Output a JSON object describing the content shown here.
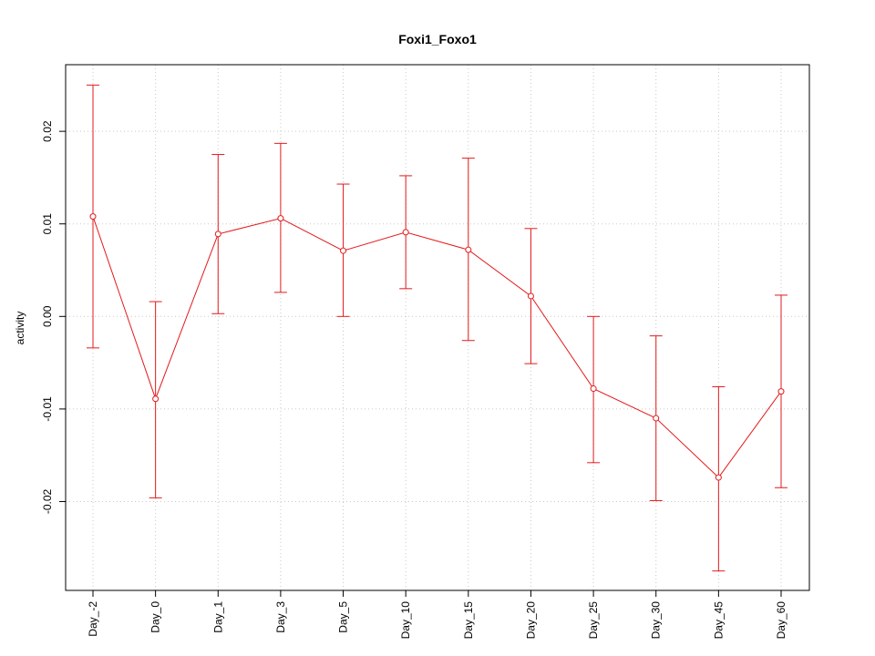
{
  "chart_data": {
    "type": "line",
    "title": "Foxi1_Foxo1",
    "xlabel": "",
    "ylabel": "activity",
    "categories": [
      "Day_-2",
      "Day_0",
      "Day_1",
      "Day_3",
      "Day_5",
      "Day_10",
      "Day_15",
      "Day_20",
      "Day_25",
      "Day_30",
      "Day_45",
      "Day_60"
    ],
    "series": [
      {
        "values": [
          0.0108,
          -0.0089,
          0.0089,
          0.0106,
          0.0071,
          0.0091,
          0.0072,
          0.0022,
          -0.0078,
          -0.011,
          -0.0174,
          -0.0081
        ],
        "lower": [
          -0.0034,
          -0.0196,
          0.0003,
          0.0026,
          0.0,
          0.003,
          -0.0026,
          -0.0051,
          -0.0158,
          -0.0199,
          -0.0275,
          -0.0185
        ],
        "upper": [
          0.025,
          0.0016,
          0.0175,
          0.0187,
          0.0143,
          0.0152,
          0.0171,
          0.0095,
          0.0,
          -0.0021,
          -0.0076,
          0.0023
        ]
      }
    ],
    "yticks": [
      -0.02,
      -0.01,
      0.0,
      0.01,
      0.02
    ],
    "ytick_labels": [
      "-0.02",
      "-0.01",
      "0.00",
      "0.01",
      "0.02"
    ],
    "ylim": [
      -0.0296,
      0.0272
    ],
    "grid": true,
    "colors": {
      "series": "#e31a1c",
      "grid": "#c8c8c8",
      "axis": "#000000"
    }
  }
}
